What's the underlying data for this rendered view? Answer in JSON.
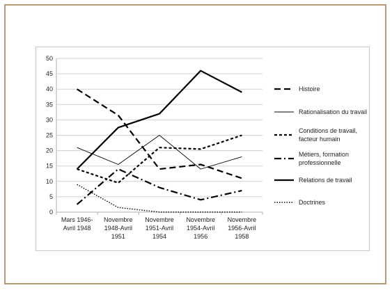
{
  "chart_data": {
    "type": "line",
    "categories": [
      [
        "Mars 1946-",
        "Avril 1948"
      ],
      [
        "Novembre",
        "1948-Avril",
        "1951"
      ],
      [
        "Novembre",
        "1951-Avril",
        "1954"
      ],
      [
        "Novembre",
        "1954-Avril",
        "1956"
      ],
      [
        "Novembre",
        "1956-Avril",
        "1958"
      ]
    ],
    "ylim": [
      0,
      50
    ],
    "yticks": [
      0,
      5,
      10,
      15,
      20,
      25,
      30,
      35,
      40,
      45,
      50
    ],
    "grid": true,
    "legend_position": "right",
    "series": [
      {
        "name": [
          "Histoire"
        ],
        "style": "long-dash",
        "values": [
          40,
          31.5,
          14,
          15.5,
          11
        ]
      },
      {
        "name": [
          "Rationalisation du travail"
        ],
        "style": "thin",
        "values": [
          21,
          15.5,
          25,
          14,
          18
        ]
      },
      {
        "name": [
          "Conditions de travail,",
          "facteur humain"
        ],
        "style": "dash",
        "values": [
          14,
          9.5,
          21,
          20.5,
          25
        ]
      },
      {
        "name": [
          "Métiers, formation",
          "professionnelle"
        ],
        "style": "dash-dot",
        "values": [
          2.5,
          14,
          8,
          4,
          7
        ]
      },
      {
        "name": [
          "Relations de travail"
        ],
        "style": "solid",
        "values": [
          14,
          27.5,
          32,
          46,
          39
        ]
      },
      {
        "name": [
          "Doctrines"
        ],
        "style": "dotted",
        "values": [
          9,
          1.5,
          0,
          0,
          0
        ]
      }
    ]
  }
}
